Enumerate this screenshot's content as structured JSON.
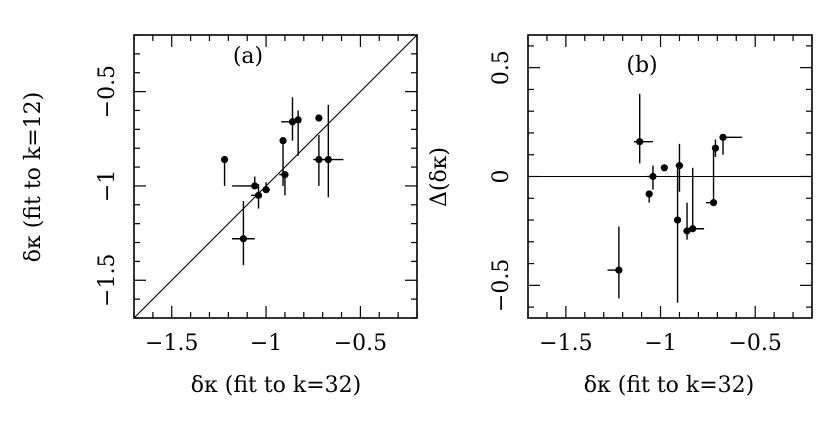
{
  "chart_data": [
    {
      "type": "scatter",
      "panel_label": "(a)",
      "xlabel": "δκ (fit to k=32)",
      "ylabel": "δκ (fit to k=12)",
      "xlim": [
        -1.7,
        -0.2
      ],
      "ylim": [
        -1.7,
        -0.2
      ],
      "x_ticks": [
        "−1.5",
        "−1",
        "−0.5"
      ],
      "x_tick_values": [
        -1.5,
        -1.0,
        -0.5
      ],
      "y_ticks": [
        "−1.5",
        "−1",
        "−0.5"
      ],
      "y_tick_values": [
        -1.5,
        -1.0,
        -0.5
      ],
      "reference_line": "y = x",
      "points": [
        {
          "x": -1.22,
          "y": -0.86,
          "xerr": [
            0.0,
            0.0
          ],
          "yerr": [
            0.14,
            0.0
          ]
        },
        {
          "x": -1.12,
          "y": -1.28,
          "xerr": [
            0.06,
            0.06
          ],
          "yerr": [
            0.14,
            0.2
          ]
        },
        {
          "x": -1.06,
          "y": -1.0,
          "xerr": [
            0.12,
            0.0
          ],
          "yerr": [
            0.0,
            0.05
          ]
        },
        {
          "x": -1.04,
          "y": -1.05,
          "xerr": [
            0.04,
            0.0
          ],
          "yerr": [
            0.07,
            0.06
          ]
        },
        {
          "x": -1.0,
          "y": -1.02,
          "xerr": [
            0.02,
            0.02
          ],
          "yerr": [
            0.0,
            0.04
          ]
        },
        {
          "x": -0.91,
          "y": -0.76,
          "xerr": [
            0.0,
            0.0
          ],
          "yerr": [
            0.24,
            0.0
          ]
        },
        {
          "x": -0.9,
          "y": -0.94,
          "xerr": [
            0.03,
            0.0
          ],
          "yerr": [
            0.11,
            0.0
          ]
        },
        {
          "x": -0.86,
          "y": -0.66,
          "xerr": [
            0.06,
            0.03
          ],
          "yerr": [
            0.1,
            0.13
          ]
        },
        {
          "x": -0.83,
          "y": -0.65,
          "xerr": [
            0.0,
            0.0
          ],
          "yerr": [
            0.19,
            0.05
          ]
        },
        {
          "x": -0.72,
          "y": -0.64,
          "xerr": [
            0.0,
            0.0
          ],
          "yerr": [
            0.0,
            0.0
          ]
        },
        {
          "x": -0.72,
          "y": -0.86,
          "xerr": [
            0.03,
            0.06
          ],
          "yerr": [
            0.14,
            0.13
          ]
        },
        {
          "x": -0.67,
          "y": -0.86,
          "xerr": [
            0.03,
            0.08
          ],
          "yerr": [
            0.2,
            0.29
          ]
        }
      ]
    },
    {
      "type": "scatter",
      "panel_label": "(b)",
      "xlabel": "δκ (fit to k=32)",
      "ylabel": "Δ(δκ)",
      "xlim": [
        -1.7,
        -0.2
      ],
      "ylim": [
        -0.65,
        0.65
      ],
      "x_ticks": [
        "−1.5",
        "−1",
        "−0.5"
      ],
      "x_tick_values": [
        -1.5,
        -1.0,
        -0.5
      ],
      "y_ticks": [
        "−0.5",
        "0",
        "0.5"
      ],
      "y_tick_values": [
        -0.5,
        0.0,
        0.5
      ],
      "reference_line": "y = 0",
      "points": [
        {
          "x": -1.22,
          "y": -0.43,
          "xerr": [
            0.06,
            0.0
          ],
          "yerr": [
            0.13,
            0.2
          ]
        },
        {
          "x": -1.11,
          "y": 0.16,
          "xerr": [
            0.03,
            0.07
          ],
          "yerr": [
            0.1,
            0.22
          ]
        },
        {
          "x": -1.06,
          "y": -0.08,
          "xerr": [
            0.0,
            0.0
          ],
          "yerr": [
            0.04,
            0.0
          ]
        },
        {
          "x": -1.04,
          "y": 0.0,
          "xerr": [
            0.03,
            0.0
          ],
          "yerr": [
            0.06,
            0.05
          ]
        },
        {
          "x": -0.98,
          "y": 0.04,
          "xerr": [
            0.0,
            0.0
          ],
          "yerr": [
            0.0,
            0.0
          ]
        },
        {
          "x": -0.9,
          "y": 0.05,
          "xerr": [
            0.02,
            0.02
          ],
          "yerr": [
            0.12,
            0.1
          ]
        },
        {
          "x": -0.91,
          "y": -0.2,
          "xerr": [
            0.0,
            0.0
          ],
          "yerr": [
            0.38,
            0.26
          ]
        },
        {
          "x": -0.86,
          "y": -0.25,
          "xerr": [
            0.02,
            0.02
          ],
          "yerr": [
            0.04,
            0.13
          ]
        },
        {
          "x": -0.83,
          "y": -0.24,
          "xerr": [
            0.03,
            0.06
          ],
          "yerr": [
            0.0,
            0.28
          ]
        },
        {
          "x": -0.72,
          "y": -0.12,
          "xerr": [
            0.04,
            0.0
          ],
          "yerr": [
            0.0,
            0.24
          ]
        },
        {
          "x": -0.71,
          "y": 0.13,
          "xerr": [
            0.0,
            0.0
          ],
          "yerr": [
            0.04,
            0.04
          ]
        },
        {
          "x": -0.67,
          "y": 0.18,
          "xerr": [
            0.0,
            0.1
          ],
          "yerr": [
            0.08,
            0.0
          ]
        }
      ]
    }
  ]
}
